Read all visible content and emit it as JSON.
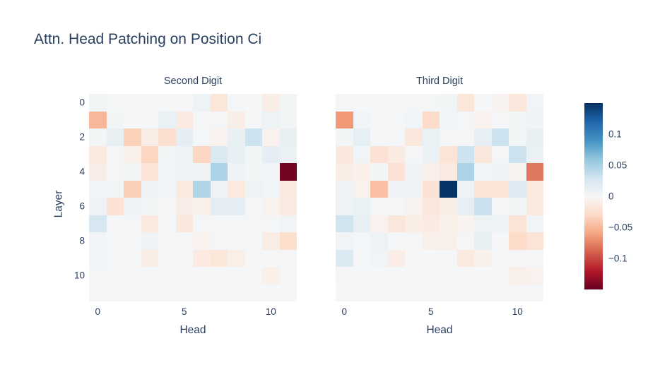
{
  "title": "Attn. Head Patching on Position Ci",
  "colors": {
    "text": "#2a3f5f",
    "background": "#ffffff",
    "colormap_stops": [
      "#67001f",
      "#b2182b",
      "#d6604d",
      "#f4a582",
      "#fddbc7",
      "#f7f7f7",
      "#d1e5f0",
      "#92c5de",
      "#4393c3",
      "#2166ac",
      "#053061"
    ]
  },
  "chart_data": {
    "type": "heatmap",
    "title": "Attn. Head Patching on Position Ci",
    "colormap": "RdBu",
    "zmin": -0.15,
    "zmax": 0.15,
    "grid": false,
    "xlabel": "Head",
    "ylabel": "Layer",
    "x_ticks": [
      {
        "v": 0,
        "label": "0"
      },
      {
        "v": 5,
        "label": "5"
      },
      {
        "v": 10,
        "label": "10"
      }
    ],
    "y_ticks": [
      {
        "v": 0,
        "label": "0"
      },
      {
        "v": 2,
        "label": "2"
      },
      {
        "v": 4,
        "label": "4"
      },
      {
        "v": 6,
        "label": "6"
      },
      {
        "v": 8,
        "label": "8"
      },
      {
        "v": 10,
        "label": "10"
      }
    ],
    "colorbar_ticks": [
      {
        "v": 0.1,
        "label": "0.1"
      },
      {
        "v": 0.05,
        "label": "0.05"
      },
      {
        "v": 0,
        "label": "0"
      },
      {
        "v": -0.05,
        "label": "−0.05"
      },
      {
        "v": -0.1,
        "label": "−0.1"
      }
    ],
    "legend_position": "right",
    "subplots": [
      {
        "title": "Second Digit",
        "heads": [
          0,
          1,
          2,
          3,
          4,
          5,
          6,
          7,
          8,
          9,
          10,
          11
        ],
        "layers": [
          0,
          1,
          2,
          3,
          4,
          5,
          6,
          7,
          8,
          9,
          10,
          11
        ],
        "z": [
          [
            0.004,
            0.002,
            0.003,
            0.003,
            0.002,
            0.003,
            0.008,
            -0.018,
            0.003,
            0.002,
            -0.01,
            0.004
          ],
          [
            -0.05,
            0.004,
            0.002,
            0.002,
            0.01,
            -0.014,
            0.003,
            0.003,
            -0.01,
            0.003,
            0.008,
            0.004
          ],
          [
            0.004,
            0.012,
            -0.035,
            -0.012,
            -0.025,
            0.015,
            0.003,
            -0.006,
            0.012,
            0.032,
            -0.006,
            0.012
          ],
          [
            -0.015,
            0.003,
            -0.008,
            -0.033,
            0.004,
            0.008,
            -0.033,
            0.022,
            0.012,
            0.004,
            0.015,
            0.01
          ],
          [
            -0.01,
            0.003,
            0.004,
            -0.02,
            0.005,
            0.008,
            0.006,
            0.048,
            0.007,
            0.004,
            0.005,
            -0.145
          ],
          [
            0.005,
            0.004,
            -0.037,
            0.006,
            0.005,
            -0.015,
            0.046,
            0.007,
            -0.015,
            0.008,
            0.005,
            -0.015
          ],
          [
            0.006,
            -0.022,
            0.006,
            0.004,
            0.003,
            -0.01,
            -0.008,
            0.016,
            0.016,
            0.003,
            -0.006,
            -0.014
          ],
          [
            0.026,
            0.003,
            0.003,
            -0.015,
            0.003,
            -0.016,
            0.003,
            0.003,
            0.003,
            0.003,
            0.003,
            0.005
          ],
          [
            0.005,
            0.003,
            0.003,
            0.006,
            0.002,
            0.003,
            -0.006,
            0.003,
            0.003,
            0.003,
            -0.012,
            -0.026
          ],
          [
            0.005,
            0.002,
            0.002,
            -0.011,
            0.002,
            0.002,
            -0.014,
            -0.018,
            -0.009,
            0.002,
            0.002,
            0.003
          ],
          [
            0.003,
            0.002,
            0.002,
            0.002,
            0.002,
            0.002,
            0.002,
            0.002,
            0.002,
            0.002,
            -0.008,
            0.002
          ],
          [
            0.002,
            0.001,
            0.001,
            0.002,
            0.001,
            0.002,
            0.002,
            0.002,
            0.001,
            0.002,
            0.002,
            0.002
          ]
        ]
      },
      {
        "title": "Third Digit",
        "heads": [
          0,
          1,
          2,
          3,
          4,
          5,
          6,
          7,
          8,
          9,
          10,
          11
        ],
        "layers": [
          0,
          1,
          2,
          3,
          4,
          5,
          6,
          7,
          8,
          9,
          10,
          11
        ],
        "z": [
          [
            0.003,
            0.002,
            0.003,
            0.002,
            0.003,
            0.003,
            0.004,
            -0.018,
            0.002,
            -0.004,
            -0.016,
            0.005
          ],
          [
            -0.065,
            0.005,
            0.003,
            0.002,
            0.005,
            -0.028,
            0.005,
            0.003,
            -0.006,
            0.003,
            0.004,
            0.006
          ],
          [
            0.004,
            0.014,
            0.003,
            0.003,
            -0.016,
            0.01,
            0.003,
            0.003,
            0.014,
            0.032,
            0.004,
            0.012
          ],
          [
            -0.016,
            0.005,
            -0.022,
            -0.013,
            0.003,
            0.01,
            -0.02,
            0.032,
            -0.016,
            0.003,
            0.032,
            0.01
          ],
          [
            -0.011,
            -0.008,
            0.004,
            -0.022,
            0.006,
            -0.009,
            -0.013,
            0.048,
            0.005,
            0.006,
            -0.004,
            -0.08
          ],
          [
            0.006,
            -0.006,
            -0.045,
            0.008,
            0.006,
            -0.022,
            0.148,
            0.006,
            -0.02,
            -0.02,
            0.02,
            -0.015
          ],
          [
            0.008,
            0.01,
            0.003,
            0.003,
            -0.005,
            -0.018,
            -0.011,
            0.014,
            0.033,
            0.003,
            0.004,
            -0.015
          ],
          [
            0.03,
            0.013,
            -0.006,
            -0.018,
            -0.011,
            -0.014,
            -0.008,
            -0.004,
            0.008,
            0.009,
            -0.02,
            0.005
          ],
          [
            0.005,
            0.003,
            0.008,
            0.002,
            0.003,
            -0.008,
            -0.009,
            0.003,
            0.012,
            0.002,
            -0.028,
            -0.02
          ],
          [
            0.022,
            0.003,
            0.005,
            -0.011,
            0.002,
            0.002,
            0.002,
            -0.015,
            -0.008,
            0.003,
            0.003,
            0.003
          ],
          [
            0.003,
            0.002,
            0.002,
            0.002,
            0.002,
            0.002,
            0.002,
            0.002,
            0.002,
            0.002,
            -0.009,
            -0.006
          ],
          [
            0.002,
            0.002,
            0.002,
            0.002,
            0.001,
            0.002,
            0.002,
            0.002,
            0.002,
            0.002,
            0.002,
            0.002
          ]
        ]
      }
    ]
  }
}
